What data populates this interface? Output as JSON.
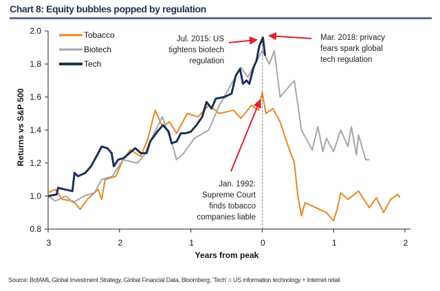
{
  "chart_data": {
    "type": "line",
    "title": "Chart 8: Equity bubbles popped by regulation",
    "xlabel": "Years from peak",
    "ylabel": "Returns vs S&P 500",
    "xlim": [
      -3,
      2
    ],
    "ylim": [
      0.8,
      2.0
    ],
    "xticks": [
      -3,
      -2,
      -1,
      0,
      1,
      2
    ],
    "xtick_labels": [
      "3",
      "2",
      "1",
      "0",
      "1",
      "2"
    ],
    "yticks": [
      0.8,
      1.0,
      1.2,
      1.4,
      1.6,
      1.8,
      2.0
    ],
    "ytick_labels": [
      "0.8",
      "1.0",
      "1.2",
      "1.4",
      "1.6",
      "1.8",
      "2.0"
    ],
    "grid": false,
    "legend": "top-left",
    "series": [
      {
        "name": "Tobacco",
        "color": "#e8861e",
        "x": [
          -3,
          -2.9,
          -2.8,
          -2.65,
          -2.55,
          -2.45,
          -2.3,
          -2.25,
          -2.2,
          -2.05,
          -1.95,
          -1.85,
          -1.7,
          -1.6,
          -1.5,
          -1.4,
          -1.3,
          -1.2,
          -1.05,
          -0.9,
          -0.75,
          -0.6,
          -0.4,
          -0.3,
          -0.15,
          -0.05,
          0,
          0.05,
          0.15,
          0.25,
          0.35,
          0.45,
          0.5,
          0.55,
          0.6,
          0.75,
          0.9,
          1.0,
          1.05,
          1.1,
          1.2,
          1.35,
          1.5,
          1.6,
          1.7,
          1.8,
          1.9,
          1.93
        ],
        "y": [
          1.02,
          1.04,
          0.98,
          0.97,
          0.92,
          0.98,
          1.04,
          0.98,
          1.1,
          1.12,
          1.22,
          1.28,
          1.24,
          1.35,
          1.52,
          1.42,
          1.45,
          1.38,
          1.5,
          1.48,
          1.55,
          1.5,
          1.52,
          1.47,
          1.55,
          1.52,
          1.63,
          1.5,
          1.53,
          1.45,
          1.32,
          1.2,
          1.0,
          0.88,
          0.96,
          0.93,
          0.9,
          0.85,
          0.92,
          1.02,
          0.98,
          1.03,
          0.93,
          0.99,
          0.9,
          0.98,
          1.01,
          0.99
        ]
      },
      {
        "name": "Biotech",
        "color": "#a6a6a6",
        "x": [
          -3,
          -2.9,
          -2.75,
          -2.65,
          -2.5,
          -2.35,
          -2.25,
          -2.1,
          -1.95,
          -1.75,
          -1.65,
          -1.55,
          -1.4,
          -1.25,
          -1.2,
          -1.1,
          -0.95,
          -0.75,
          -0.6,
          -0.3,
          -0.2,
          -0.1,
          0,
          0.1,
          0.17,
          0.25,
          0.35,
          0.45,
          0.55,
          0.7,
          0.78,
          0.85,
          0.9,
          1.0,
          1.1,
          1.2,
          1.25,
          1.32,
          1.35,
          1.45,
          1.5
        ],
        "y": [
          1.0,
          0.97,
          1.0,
          0.96,
          1.0,
          1.02,
          1.1,
          1.12,
          1.22,
          1.2,
          1.25,
          1.35,
          1.48,
          1.3,
          1.22,
          1.26,
          1.35,
          1.4,
          1.55,
          1.78,
          1.72,
          1.8,
          1.88,
          1.8,
          1.88,
          1.6,
          1.65,
          1.7,
          1.4,
          1.28,
          1.42,
          1.27,
          1.35,
          1.27,
          1.4,
          1.3,
          1.42,
          1.25,
          1.37,
          1.22,
          1.22
        ]
      },
      {
        "name": "Tech",
        "color": "#1c2f5a",
        "x": [
          -3,
          -2.88,
          -2.86,
          -2.76,
          -2.66,
          -2.63,
          -2.58,
          -2.48,
          -2.4,
          -2.31,
          -2.25,
          -2.17,
          -2.11,
          -2.08,
          -2.02,
          -1.94,
          -1.86,
          -1.78,
          -1.7,
          -1.62,
          -1.57,
          -1.47,
          -1.39,
          -1.31,
          -1.27,
          -1.2,
          -1.14,
          -1.08,
          -1.0,
          -0.92,
          -0.84,
          -0.78,
          -0.71,
          -0.65,
          -0.53,
          -0.43,
          -0.37,
          -0.31,
          -0.27,
          -0.22,
          -0.18,
          -0.12,
          -0.08,
          -0.04,
          0.01,
          0.04
        ],
        "y": [
          1.0,
          1.01,
          1.05,
          1.04,
          1.03,
          1.14,
          1.12,
          1.14,
          1.18,
          1.25,
          1.3,
          1.29,
          1.26,
          1.18,
          1.22,
          1.23,
          1.26,
          1.29,
          1.26,
          1.26,
          1.33,
          1.39,
          1.43,
          1.39,
          1.32,
          1.33,
          1.38,
          1.38,
          1.39,
          1.43,
          1.48,
          1.57,
          1.53,
          1.59,
          1.6,
          1.62,
          1.73,
          1.77,
          1.68,
          1.7,
          1.68,
          1.78,
          1.82,
          1.91,
          1.96,
          1.85
        ]
      }
    ],
    "annotations": [
      {
        "lines": [
          "Jul. 2015: US",
          "tightens biotech",
          "regulation"
        ],
        "color": "#e0202a"
      },
      {
        "lines": [
          "Mar. 2018: privacy",
          "fears spark global",
          "tech regulation"
        ],
        "color": "#e0202a"
      },
      {
        "lines": [
          "Jan. 1992:",
          "Supreme Court",
          "finds tobacco",
          "companies liable"
        ],
        "color": "#e0202a"
      }
    ]
  },
  "source": "Source: BofAML Global Investment Strategy, Global Financial Data, Bloomberg; 'Tech' = US information technology  + Internet retail"
}
